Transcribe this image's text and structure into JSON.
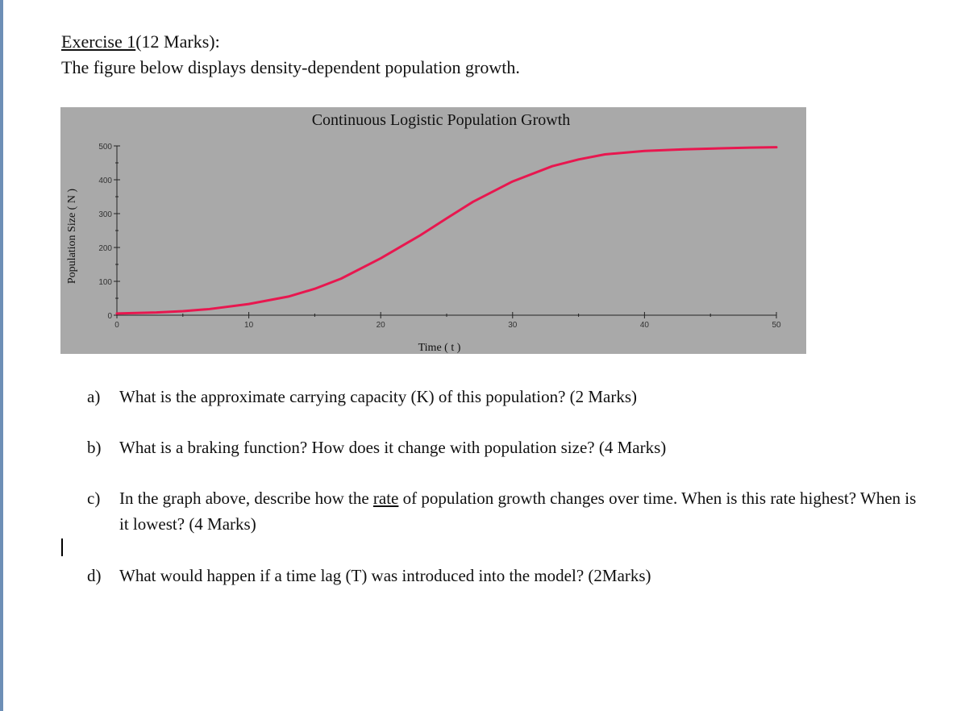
{
  "heading": {
    "prefix": "Exercise 1",
    "suffix": "(12 Marks):"
  },
  "intro": "The figure below displays density-dependent population growth.",
  "colors": {
    "chart_background": "#a9a9a9",
    "curve": "#e8174f"
  },
  "chart_data": {
    "type": "line",
    "title": "Continuous Logistic Population Growth",
    "xlabel": "Time ( t )",
    "ylabel": "Population Size ( N )",
    "xlim": [
      0,
      50
    ],
    "ylim": [
      0,
      500
    ],
    "x_ticks": [
      "0",
      "10",
      "20",
      "30",
      "40",
      "50"
    ],
    "y_ticks": [
      "0",
      "100",
      "200",
      "300",
      "400",
      "500"
    ],
    "series": [
      {
        "x": [
          0,
          3,
          5,
          7,
          10,
          13,
          15,
          17,
          20,
          23,
          25,
          27,
          30,
          33,
          35,
          37,
          40,
          43,
          45,
          48,
          50
        ],
        "values": [
          5,
          8,
          12,
          18,
          33,
          55,
          78,
          108,
          168,
          236,
          286,
          335,
          395,
          440,
          460,
          475,
          485,
          490,
          492,
          495,
          496
        ]
      }
    ]
  },
  "questions": [
    {
      "letter": "a)",
      "text": "What is the approximate carrying capacity (K) of this population? (2 Marks)"
    },
    {
      "letter": "b)",
      "text": "What is a braking function? How does it change with population size? (4 Marks)"
    },
    {
      "letter": "c)",
      "pre": "In the graph above, describe how the ",
      "underlined": "rate",
      "post": " of population growth changes over time. When is this rate highest? When is it lowest? (4 Marks)"
    },
    {
      "letter": "d)",
      "text": "What would happen if a time lag (T) was introduced into the model? (2Marks)"
    }
  ]
}
